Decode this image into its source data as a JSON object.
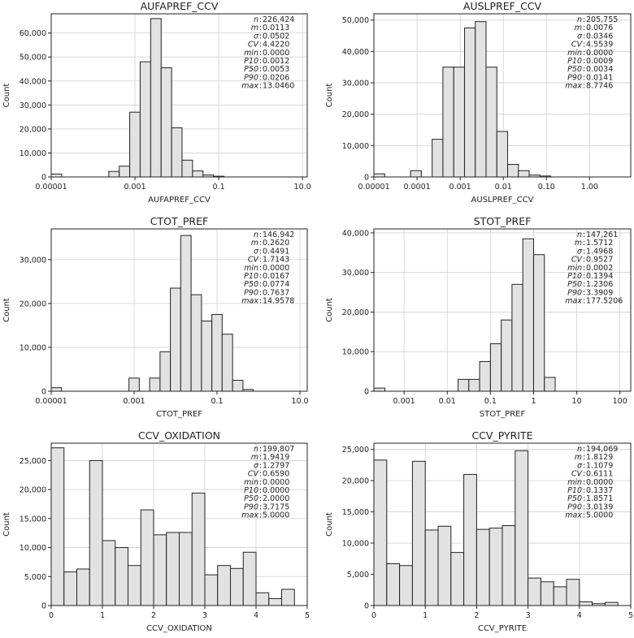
{
  "chart_data": [
    {
      "type": "bar",
      "id": "aufapref",
      "title": "AUFAPREF_CCV",
      "xlabel": "AUFAPREF_CCV",
      "ylabel": "Count",
      "xscale": "log",
      "xlim": [
        1e-05,
        13.0
      ],
      "ylim": [
        0,
        68000
      ],
      "xticks": [
        {
          "v": 1e-05,
          "label": "0.00001"
        },
        {
          "v": 0.001,
          "label": "0.001"
        },
        {
          "v": 0.1,
          "label": "0.1"
        },
        {
          "v": 10,
          "label": "10.0"
        }
      ],
      "yticks": [
        {
          "v": 0,
          "label": "0"
        },
        {
          "v": 10000,
          "label": "10,000"
        },
        {
          "v": 20000,
          "label": "20,000"
        },
        {
          "v": 30000,
          "label": "30,000"
        },
        {
          "v": 40000,
          "label": "40,000"
        },
        {
          "v": 50000,
          "label": "50,000"
        },
        {
          "v": 60000,
          "label": "60,000"
        }
      ],
      "bins": [
        {
          "x0": 1e-05,
          "x1": 1.78e-05,
          "value": 1200
        },
        {
          "x0": 0.000237,
          "x1": 0.000422,
          "value": 2300
        },
        {
          "x0": 0.000422,
          "x1": 0.00075,
          "value": 4500
        },
        {
          "x0": 0.00075,
          "x1": 0.00133,
          "value": 27000
        },
        {
          "x0": 0.00133,
          "x1": 0.00237,
          "value": 48000
        },
        {
          "x0": 0.00237,
          "x1": 0.00422,
          "value": 66000
        },
        {
          "x0": 0.00422,
          "x1": 0.0075,
          "value": 45500
        },
        {
          "x0": 0.0075,
          "x1": 0.0133,
          "value": 20500
        },
        {
          "x0": 0.0133,
          "x1": 0.0237,
          "value": 7000
        },
        {
          "x0": 0.0237,
          "x1": 0.0422,
          "value": 2500
        },
        {
          "x0": 0.0422,
          "x1": 0.075,
          "value": 800
        },
        {
          "x0": 0.075,
          "x1": 0.133,
          "value": 300
        }
      ],
      "stats": [
        {
          "key": "n",
          "value": "226,424"
        },
        {
          "key": "m",
          "value": "0.0113"
        },
        {
          "key": "σ",
          "value": "0.0502"
        },
        {
          "key": "CV",
          "value": "4.4220"
        },
        {
          "key": "min",
          "value": "0.0000"
        },
        {
          "key": "P10",
          "value": "0.0012"
        },
        {
          "key": "P50",
          "value": "0.0053"
        },
        {
          "key": "P90",
          "value": "0.0206"
        },
        {
          "key": "max",
          "value": "13.0460"
        }
      ]
    },
    {
      "type": "bar",
      "id": "auslpref",
      "title": "AUSLPREF_CCV",
      "xlabel": "AUSLPREF_CCV",
      "ylabel": "Count",
      "xscale": "log",
      "xlim": [
        1e-05,
        9.0
      ],
      "ylim": [
        0,
        52000
      ],
      "xticks": [
        {
          "v": 1e-05,
          "label": "0.00001"
        },
        {
          "v": 0.0001,
          "label": "0.0001"
        },
        {
          "v": 0.001,
          "label": "0.001"
        },
        {
          "v": 0.01,
          "label": "0.01"
        },
        {
          "v": 0.1,
          "label": "0.10"
        },
        {
          "v": 1,
          "label": "1.00"
        }
      ],
      "yticks": [
        {
          "v": 0,
          "label": "0"
        },
        {
          "v": 10000,
          "label": "10,000"
        },
        {
          "v": 20000,
          "label": "20,000"
        },
        {
          "v": 30000,
          "label": "30,000"
        },
        {
          "v": 40000,
          "label": "40,000"
        },
        {
          "v": 50000,
          "label": "50,000"
        }
      ],
      "bins": [
        {
          "x0": 1e-05,
          "x1": 1.78e-05,
          "value": 1000
        },
        {
          "x0": 7.08e-05,
          "x1": 0.000126,
          "value": 2000
        },
        {
          "x0": 0.000224,
          "x1": 0.000398,
          "value": 12000
        },
        {
          "x0": 0.000398,
          "x1": 0.000708,
          "value": 35000
        },
        {
          "x0": 0.000708,
          "x1": 0.00126,
          "value": 35000
        },
        {
          "x0": 0.00126,
          "x1": 0.00224,
          "value": 47500
        },
        {
          "x0": 0.00224,
          "x1": 0.00398,
          "value": 49500
        },
        {
          "x0": 0.00398,
          "x1": 0.00708,
          "value": 35000
        },
        {
          "x0": 0.00708,
          "x1": 0.0126,
          "value": 14500
        },
        {
          "x0": 0.0126,
          "x1": 0.0224,
          "value": 4000
        },
        {
          "x0": 0.0224,
          "x1": 0.0398,
          "value": 2000
        },
        {
          "x0": 0.0398,
          "x1": 0.0708,
          "value": 600
        },
        {
          "x0": 0.0708,
          "x1": 0.126,
          "value": 300
        }
      ],
      "stats": [
        {
          "key": "n",
          "value": "205,755"
        },
        {
          "key": "m",
          "value": "0.0076"
        },
        {
          "key": "σ",
          "value": "0.0346"
        },
        {
          "key": "CV",
          "value": "4.5539"
        },
        {
          "key": "min",
          "value": "0.0000"
        },
        {
          "key": "P10",
          "value": "0.0009"
        },
        {
          "key": "P50",
          "value": "0.0034"
        },
        {
          "key": "P90",
          "value": "0.0141"
        },
        {
          "key": "max",
          "value": "8.7746"
        }
      ]
    },
    {
      "type": "bar",
      "id": "ctot",
      "title": "CTOT_PREF",
      "xlabel": "CTOT_PREF",
      "ylabel": "Count",
      "xscale": "log",
      "xlim": [
        1e-05,
        15.0
      ],
      "ylim": [
        0,
        37000
      ],
      "xticks": [
        {
          "v": 1e-05,
          "label": "0.00001"
        },
        {
          "v": 0.001,
          "label": "0.001"
        },
        {
          "v": 0.1,
          "label": "0.1"
        },
        {
          "v": 10,
          "label": "10.0"
        }
      ],
      "yticks": [
        {
          "v": 0,
          "label": "0"
        },
        {
          "v": 10000,
          "label": "10,000"
        },
        {
          "v": 20000,
          "label": "20,000"
        },
        {
          "v": 30000,
          "label": "30,000"
        }
      ],
      "bins": [
        {
          "x0": 1e-05,
          "x1": 1.78e-05,
          "value": 800
        },
        {
          "x0": 0.00075,
          "x1": 0.00133,
          "value": 3000
        },
        {
          "x0": 0.00237,
          "x1": 0.00422,
          "value": 3000
        },
        {
          "x0": 0.00422,
          "x1": 0.0075,
          "value": 9000
        },
        {
          "x0": 0.0075,
          "x1": 0.0133,
          "value": 23500
        },
        {
          "x0": 0.0133,
          "x1": 0.0237,
          "value": 35500
        },
        {
          "x0": 0.0237,
          "x1": 0.0422,
          "value": 22000
        },
        {
          "x0": 0.0422,
          "x1": 0.075,
          "value": 16000
        },
        {
          "x0": 0.075,
          "x1": 0.133,
          "value": 17500
        },
        {
          "x0": 0.133,
          "x1": 0.237,
          "value": 13000
        },
        {
          "x0": 0.237,
          "x1": 0.422,
          "value": 2500
        },
        {
          "x0": 0.422,
          "x1": 0.75,
          "value": 400
        }
      ],
      "stats": [
        {
          "key": "n",
          "value": "146,942"
        },
        {
          "key": "m",
          "value": "0.2620"
        },
        {
          "key": "σ",
          "value": "0.4491"
        },
        {
          "key": "CV",
          "value": "1.7143"
        },
        {
          "key": "min",
          "value": "0.0000"
        },
        {
          "key": "P10",
          "value": "0.0167"
        },
        {
          "key": "P50",
          "value": "0.0774"
        },
        {
          "key": "P90",
          "value": "0.7637"
        },
        {
          "key": "max",
          "value": "14.9578"
        }
      ]
    },
    {
      "type": "bar",
      "id": "stot",
      "title": "STOT_PREF",
      "xlabel": "STOT_PREF",
      "ylabel": "Count",
      "xscale": "log",
      "xlim": [
        0.0002,
        178.0
      ],
      "ylim": [
        0,
        41000
      ],
      "xticks": [
        {
          "v": 0.001,
          "label": "0.001"
        },
        {
          "v": 0.01,
          "label": "0.01"
        },
        {
          "v": 0.1,
          "label": "0.1"
        },
        {
          "v": 1,
          "label": "1"
        },
        {
          "v": 10,
          "label": "10"
        },
        {
          "v": 100,
          "label": "100"
        }
      ],
      "yticks": [
        {
          "v": 0,
          "label": "0"
        },
        {
          "v": 10000,
          "label": "10,000"
        },
        {
          "v": 20000,
          "label": "20,000"
        },
        {
          "v": 30000,
          "label": "30,000"
        },
        {
          "v": 40000,
          "label": "40,000"
        }
      ],
      "bins": [
        {
          "x0": 0.0002,
          "x1": 0.00036,
          "value": 800
        },
        {
          "x0": 0.0178,
          "x1": 0.0316,
          "value": 3000
        },
        {
          "x0": 0.0316,
          "x1": 0.0562,
          "value": 3000
        },
        {
          "x0": 0.0562,
          "x1": 0.1,
          "value": 7500
        },
        {
          "x0": 0.1,
          "x1": 0.178,
          "value": 12000
        },
        {
          "x0": 0.178,
          "x1": 0.316,
          "value": 18000
        },
        {
          "x0": 0.316,
          "x1": 0.562,
          "value": 27000
        },
        {
          "x0": 0.562,
          "x1": 1.0,
          "value": 38500
        },
        {
          "x0": 1.0,
          "x1": 1.78,
          "value": 34500
        },
        {
          "x0": 1.78,
          "x1": 3.16,
          "value": 3500
        }
      ],
      "stats": [
        {
          "key": "n",
          "value": "147,261"
        },
        {
          "key": "m",
          "value": "1.5712"
        },
        {
          "key": "σ",
          "value": "1.4968"
        },
        {
          "key": "CV",
          "value": "0.9527"
        },
        {
          "key": "min",
          "value": "0.0002"
        },
        {
          "key": "P10",
          "value": "0.1394"
        },
        {
          "key": "P50",
          "value": "1.2306"
        },
        {
          "key": "P90",
          "value": "3.3909"
        },
        {
          "key": "max",
          "value": "177.5206"
        }
      ]
    },
    {
      "type": "bar",
      "id": "oxidation",
      "title": "CCV_OXIDATION",
      "xlabel": "CCV_OXIDATION",
      "ylabel": "Count",
      "xscale": "linear",
      "xlim": [
        0,
        5
      ],
      "ylim": [
        0,
        28000
      ],
      "xticks": [
        {
          "v": 0,
          "label": "0"
        },
        {
          "v": 1,
          "label": "1"
        },
        {
          "v": 2,
          "label": "2"
        },
        {
          "v": 3,
          "label": "3"
        },
        {
          "v": 4,
          "label": "4"
        },
        {
          "v": 5,
          "label": "5"
        }
      ],
      "yticks": [
        {
          "v": 0,
          "label": "0"
        },
        {
          "v": 5000,
          "label": "5,000"
        },
        {
          "v": 10000,
          "label": "10,000"
        },
        {
          "v": 15000,
          "label": "15,000"
        },
        {
          "v": 20000,
          "label": "20,000"
        },
        {
          "v": 25000,
          "label": "25,000"
        }
      ],
      "bins": [
        {
          "x0": 0.0,
          "x1": 0.25,
          "value": 27200
        },
        {
          "x0": 0.25,
          "x1": 0.5,
          "value": 5800
        },
        {
          "x0": 0.5,
          "x1": 0.75,
          "value": 6300
        },
        {
          "x0": 0.75,
          "x1": 1.0,
          "value": 25000
        },
        {
          "x0": 1.0,
          "x1": 1.25,
          "value": 11200
        },
        {
          "x0": 1.25,
          "x1": 1.5,
          "value": 10000
        },
        {
          "x0": 1.5,
          "x1": 1.75,
          "value": 6900
        },
        {
          "x0": 1.75,
          "x1": 2.0,
          "value": 16500
        },
        {
          "x0": 2.0,
          "x1": 2.25,
          "value": 12200
        },
        {
          "x0": 2.25,
          "x1": 2.5,
          "value": 12600
        },
        {
          "x0": 2.5,
          "x1": 2.75,
          "value": 12600
        },
        {
          "x0": 2.75,
          "x1": 3.0,
          "value": 19400
        },
        {
          "x0": 3.0,
          "x1": 3.25,
          "value": 5300
        },
        {
          "x0": 3.25,
          "x1": 3.5,
          "value": 6900
        },
        {
          "x0": 3.5,
          "x1": 3.75,
          "value": 6400
        },
        {
          "x0": 3.75,
          "x1": 4.0,
          "value": 9200
        },
        {
          "x0": 4.0,
          "x1": 4.25,
          "value": 2200
        },
        {
          "x0": 4.25,
          "x1": 4.5,
          "value": 1200
        },
        {
          "x0": 4.5,
          "x1": 4.75,
          "value": 2800
        }
      ],
      "stats": [
        {
          "key": "n",
          "value": "199,807"
        },
        {
          "key": "m",
          "value": "1.9419"
        },
        {
          "key": "σ",
          "value": "1.2797"
        },
        {
          "key": "CV",
          "value": "0.6590"
        },
        {
          "key": "min",
          "value": "0.0000"
        },
        {
          "key": "P10",
          "value": "0.0000"
        },
        {
          "key": "P50",
          "value": "2.0000"
        },
        {
          "key": "P90",
          "value": "3.7175"
        },
        {
          "key": "max",
          "value": "5.0000"
        }
      ]
    },
    {
      "type": "bar",
      "id": "pyrite",
      "title": "CCV_PYRITE",
      "xlabel": "CCV_PYRITE",
      "ylabel": "Count",
      "xscale": "linear",
      "xlim": [
        0,
        5
      ],
      "ylim": [
        0,
        26000
      ],
      "xticks": [
        {
          "v": 0,
          "label": "0"
        },
        {
          "v": 1,
          "label": "1"
        },
        {
          "v": 2,
          "label": "2"
        },
        {
          "v": 3,
          "label": "3"
        },
        {
          "v": 4,
          "label": "4"
        },
        {
          "v": 5,
          "label": "5"
        }
      ],
      "yticks": [
        {
          "v": 0,
          "label": "0"
        },
        {
          "v": 5000,
          "label": "5,000"
        },
        {
          "v": 10000,
          "label": "10,000"
        },
        {
          "v": 15000,
          "label": "15,000"
        },
        {
          "v": 20000,
          "label": "20,000"
        },
        {
          "v": 25000,
          "label": "25,000"
        }
      ],
      "bins": [
        {
          "x0": 0.0,
          "x1": 0.25,
          "value": 23300
        },
        {
          "x0": 0.25,
          "x1": 0.5,
          "value": 6700
        },
        {
          "x0": 0.5,
          "x1": 0.75,
          "value": 6400
        },
        {
          "x0": 0.75,
          "x1": 1.0,
          "value": 23100
        },
        {
          "x0": 1.0,
          "x1": 1.25,
          "value": 12100
        },
        {
          "x0": 1.25,
          "x1": 1.5,
          "value": 12700
        },
        {
          "x0": 1.5,
          "x1": 1.75,
          "value": 8500
        },
        {
          "x0": 1.75,
          "x1": 2.0,
          "value": 21000
        },
        {
          "x0": 2.0,
          "x1": 2.25,
          "value": 12200
        },
        {
          "x0": 2.25,
          "x1": 2.5,
          "value": 12400
        },
        {
          "x0": 2.5,
          "x1": 2.75,
          "value": 12800
        },
        {
          "x0": 2.75,
          "x1": 3.0,
          "value": 24800
        },
        {
          "x0": 3.0,
          "x1": 3.25,
          "value": 4400
        },
        {
          "x0": 3.25,
          "x1": 3.5,
          "value": 3800
        },
        {
          "x0": 3.5,
          "x1": 3.75,
          "value": 3000
        },
        {
          "x0": 3.75,
          "x1": 4.0,
          "value": 4200
        },
        {
          "x0": 4.0,
          "x1": 4.25,
          "value": 600
        },
        {
          "x0": 4.25,
          "x1": 4.5,
          "value": 300
        },
        {
          "x0": 4.5,
          "x1": 4.75,
          "value": 500
        }
      ],
      "stats": [
        {
          "key": "n",
          "value": "194,069"
        },
        {
          "key": "m",
          "value": "1.8129"
        },
        {
          "key": "σ",
          "value": "1.1079"
        },
        {
          "key": "CV",
          "value": "0.6111"
        },
        {
          "key": "min",
          "value": "0.0000"
        },
        {
          "key": "P10",
          "value": "0.1337"
        },
        {
          "key": "P50",
          "value": "1.8571"
        },
        {
          "key": "P90",
          "value": "3.0139"
        },
        {
          "key": "max",
          "value": "5.0000"
        }
      ]
    }
  ]
}
